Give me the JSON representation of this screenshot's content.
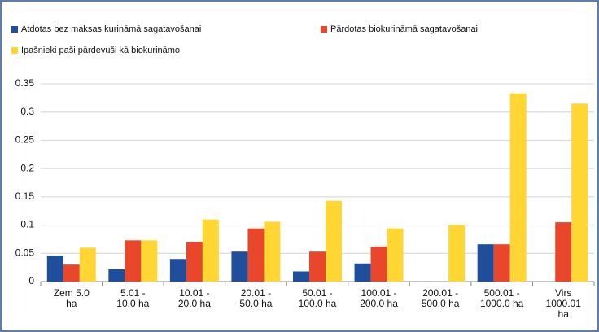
{
  "chart_data": {
    "type": "bar",
    "categories": [
      "Zem 5.0\nha",
      "5.01 -\n10.0 ha",
      "10.01 -\n20.0 ha",
      "20.01 -\n50.0 ha",
      "50.01 -\n100.0 ha",
      "100.01 -\n200.0 ha",
      "200.01 -\n500.0 ha",
      "500.01 -\n1000.0 ha",
      "Virs\n1000.01\nha"
    ],
    "series": [
      {
        "name": "Atdotas bez maksas kurināmā sagatavošanai",
        "color": "#1f4e9a",
        "values": [
          0.046,
          0.022,
          0.04,
          0.053,
          0.018,
          0.032,
          0,
          0.066,
          0
        ]
      },
      {
        "name": "Pārdotas biokurināmā sagatavošanai",
        "color": "#e8472b",
        "values": [
          0.03,
          0.073,
          0.07,
          0.094,
          0.053,
          0.062,
          0,
          0.066,
          0.105
        ]
      },
      {
        "name": "Īpašnieki paši pārdevuši kā biokurināmo",
        "color": "#ffd633",
        "values": [
          0.06,
          0.073,
          0.11,
          0.106,
          0.143,
          0.094,
          0.1,
          0.333,
          0.315
        ]
      }
    ],
    "ylim": [
      0,
      0.35
    ],
    "yticks": [
      0,
      0.05,
      0.1,
      0.15,
      0.2,
      0.25,
      0.3,
      0.35
    ],
    "grid": true
  }
}
